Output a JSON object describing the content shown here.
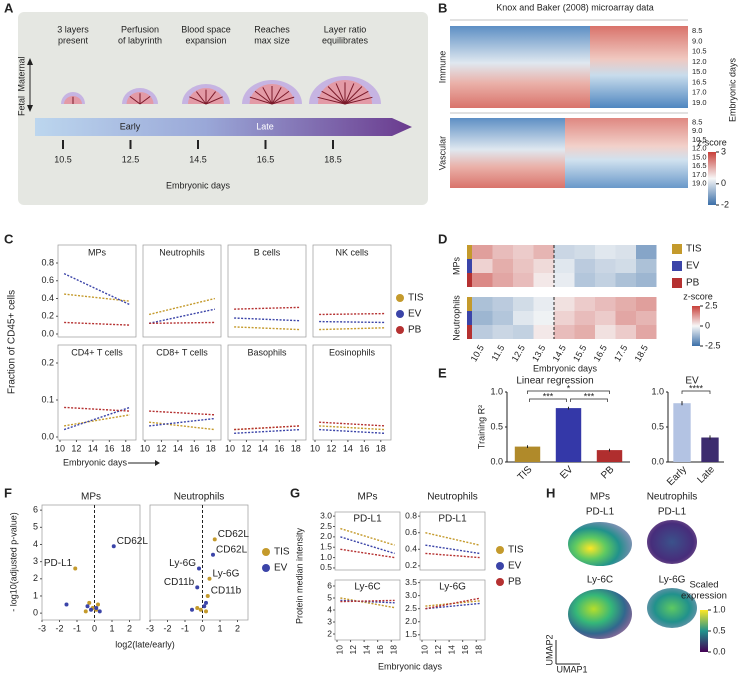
{
  "panel_letters": [
    "A",
    "B",
    "C",
    "D",
    "E",
    "F",
    "G",
    "H"
  ],
  "groups": [
    {
      "name": "TIS",
      "color": "#c49a2c"
    },
    {
      "name": "EV",
      "color": "#3b44a8"
    },
    {
      "name": "PB",
      "color": "#b53131"
    }
  ],
  "a": {
    "stages": [
      [
        "3 layers",
        "present"
      ],
      [
        "Perfusion",
        "of labyrinth"
      ],
      [
        "Blood space",
        "expansion"
      ],
      [
        "Reaches",
        "max size"
      ],
      [
        "Layer ratio",
        "equilibrates"
      ]
    ],
    "maternal": "Maternal",
    "fetal": "Fetal",
    "early": "Early",
    "late": "Late",
    "days": [
      10.5,
      12.5,
      14.5,
      16.5,
      18.5
    ],
    "xlabel": "Embryonic days"
  },
  "b": {
    "title": "Knox and Baker (2008) microarray data",
    "rows": [
      "Immune",
      "Vascular"
    ],
    "day_labels": [
      "8.5",
      "9.0",
      "10.5",
      "12.0",
      "15.0",
      "16.5",
      "17.0",
      "19.0"
    ],
    "ylabel": "Embryonic days",
    "cbar_title": "z-score",
    "cbar_ticks": [
      3,
      0,
      -2
    ],
    "zlim": [
      -2,
      3
    ]
  },
  "c": {
    "ylabel": "Fraction of CD45+ cells",
    "xlabel": "Embryonic days",
    "xlim": [
      10,
      19
    ],
    "xticks": [
      10,
      12,
      14,
      16,
      18
    ],
    "rows": [
      {
        "ylim": [
          0,
          0.8
        ],
        "yticks": [
          {
            "value": 0,
            "label": "0.0"
          },
          0.2,
          0.4,
          0.6,
          0.8
        ]
      },
      {
        "ylim": [
          0,
          0.2
        ],
        "yticks": [
          {
            "value": 0,
            "label": "0.0"
          },
          0.1,
          0.2
        ]
      }
    ],
    "subplots": [
      {
        "title": "MPs",
        "series": [
          {
            "x": [
              10.5,
              18.5
            ],
            "values": [
              0.45,
              0.37
            ]
          },
          {
            "x": [
              10.5,
              18.5
            ],
            "values": [
              0.68,
              0.33
            ]
          },
          {
            "x": [
              10.5,
              18.5
            ],
            "values": [
              0.13,
              0.1
            ]
          }
        ]
      },
      {
        "title": "Neutrophils",
        "series": [
          {
            "x": [
              10.5,
              18.5
            ],
            "values": [
              0.22,
              0.4
            ]
          },
          {
            "x": [
              10.5,
              18.5
            ],
            "values": [
              0.12,
              0.28
            ]
          },
          {
            "x": [
              10.5,
              18.5
            ],
            "values": [
              0.12,
              0.13
            ]
          }
        ]
      },
      {
        "title": "B cells",
        "series": [
          {
            "x": [
              10.5,
              18.5
            ],
            "values": [
              0.08,
              0.05
            ]
          },
          {
            "x": [
              10.5,
              18.5
            ],
            "values": [
              0.18,
              0.15
            ]
          },
          {
            "x": [
              10.5,
              18.5
            ],
            "values": [
              0.28,
              0.3
            ]
          }
        ]
      },
      {
        "title": "NK cells",
        "series": [
          {
            "x": [
              10.5,
              18.5
            ],
            "values": [
              0.05,
              0.07
            ]
          },
          {
            "x": [
              10.5,
              18.5
            ],
            "values": [
              0.14,
              0.13
            ]
          },
          {
            "x": [
              10.5,
              18.5
            ],
            "values": [
              0.22,
              0.23
            ]
          }
        ]
      },
      {
        "title": "CD4+ T cells",
        "series": [
          {
            "x": [
              10.5,
              18.5
            ],
            "values": [
              0.03,
              0.06
            ]
          },
          {
            "x": [
              10.5,
              18.5
            ],
            "values": [
              0.02,
              0.08
            ]
          },
          {
            "x": [
              10.5,
              18.5
            ],
            "values": [
              0.08,
              0.07
            ]
          }
        ]
      },
      {
        "title": "CD8+ T cells",
        "series": [
          {
            "x": [
              10.5,
              18.5
            ],
            "values": [
              0.04,
              0.02
            ]
          },
          {
            "x": [
              10.5,
              18.5
            ],
            "values": [
              0.03,
              0.05
            ]
          },
          {
            "x": [
              10.5,
              18.5
            ],
            "values": [
              0.07,
              0.06
            ]
          }
        ]
      },
      {
        "title": "Basophils",
        "series": [
          {
            "x": [
              10.5,
              18.5
            ],
            "values": [
              0.02,
              0.03
            ]
          },
          {
            "x": [
              10.5,
              18.5
            ],
            "values": [
              0.01,
              0.02
            ]
          },
          {
            "x": [
              10.5,
              18.5
            ],
            "values": [
              0.02,
              0.03
            ]
          }
        ]
      },
      {
        "title": "Eosinophils",
        "series": [
          {
            "x": [
              10.5,
              18.5
            ],
            "values": [
              0.03,
              0.02
            ]
          },
          {
            "x": [
              10.5,
              18.5
            ],
            "values": [
              0.02,
              0.01
            ]
          },
          {
            "x": [
              10.5,
              18.5
            ],
            "values": [
              0.04,
              0.03
            ]
          }
        ]
      }
    ]
  },
  "d": {
    "type": "heatmap",
    "rows": [
      "MPs",
      "Neutrophils"
    ],
    "columns": [
      10.5,
      11.5,
      12.5,
      13.5,
      14.5,
      15.5,
      16.5,
      17.5,
      18.5
    ],
    "values": [
      [
        [
          1.2,
          0.8,
          0.6,
          0.9,
          -0.6,
          -0.5,
          -0.3,
          -0.4,
          -1.5
        ],
        [
          0.5,
          1.0,
          0.7,
          0.4,
          -0.3,
          -0.8,
          -0.6,
          -0.5,
          -1.0
        ],
        [
          1.5,
          1.1,
          0.8,
          0.2,
          -0.2,
          -0.9,
          -0.7,
          -1.0,
          -1.2
        ]
      ],
      [
        [
          -1.0,
          -0.8,
          -0.5,
          -0.2,
          0.3,
          0.6,
          0.8,
          1.0,
          1.2
        ],
        [
          -1.2,
          -0.9,
          -0.3,
          -0.1,
          0.5,
          0.8,
          0.6,
          1.1,
          0.9
        ],
        [
          -0.8,
          -0.6,
          -0.7,
          0.2,
          0.8,
          1.0,
          0.3,
          0.6,
          1.1
        ]
      ]
    ],
    "zlim": [
      -2.5,
      2.5
    ],
    "cbar_title": "z-score",
    "cbar_ticks": [
      2.5,
      0,
      -2.5
    ],
    "xlabel": "Embryonic days"
  },
  "e": {
    "title": "Linear regression",
    "ylabel": "Training R²",
    "ylim": [
      0,
      1
    ],
    "yticks": [
      {
        "value": 0,
        "label": "0.0"
      },
      0.5,
      {
        "value": 1,
        "label": "1.0"
      }
    ],
    "left": {
      "categories": [
        "TIS",
        "EV",
        "PB"
      ],
      "values": [
        0.22,
        0.77,
        0.17
      ],
      "errors": [
        0.02,
        0.02,
        0.02
      ],
      "colors": [
        "#b08a2a",
        "#3438a8",
        "#b02e2e"
      ],
      "annotations": [
        "*",
        "***",
        "***"
      ]
    },
    "right": {
      "title": "EV",
      "categories": [
        "Early",
        "Late"
      ],
      "values": [
        0.84,
        0.35
      ],
      "errors": [
        0.03,
        0.03
      ],
      "colors": [
        "#b3c3e3",
        "#3c2b6e"
      ],
      "annotations": [
        "****"
      ]
    }
  },
  "f": {
    "ylabel": "- log10(adjusted p-value)",
    "xlabel": "log2(late/early)",
    "xlim": [
      -3,
      2.6
    ],
    "xticks": [
      -3,
      -2,
      -1,
      0,
      1,
      2
    ],
    "ylim": [
      -0.4,
      6.3
    ],
    "yticks": [
      0,
      1,
      2,
      3,
      4,
      5,
      6
    ],
    "subplots": [
      {
        "title": "MPs",
        "series": [
          {
            "x": [
              -1.1,
              -0.3,
              -0.1,
              0.1,
              0.2,
              -0.5
            ],
            "values": [
              2.6,
              0.6,
              0.3,
              0.2,
              0.5,
              0.1
            ],
            "point_labels": [
              "PD-L1",
              null,
              null,
              null,
              null,
              null
            ]
          },
          {
            "x": [
              1.1,
              -0.4,
              -0.2,
              0.1,
              0.3,
              -1.6
            ],
            "values": [
              3.9,
              0.4,
              0.2,
              0.3,
              0.1,
              0.5
            ],
            "point_labels": [
              "CD62L",
              null,
              null,
              null,
              null,
              null
            ]
          }
        ]
      },
      {
        "title": "Neutrophils",
        "series": [
          {
            "x": [
              0.7,
              0.4,
              0.3,
              -0.3,
              -0.1,
              0.2
            ],
            "values": [
              4.3,
              2.0,
              1.0,
              0.3,
              0.2,
              0.1
            ],
            "point_labels": [
              "CD62L",
              "Ly-6G",
              "CD11b",
              null,
              null,
              null
            ]
          },
          {
            "x": [
              0.6,
              -0.2,
              -0.3,
              0.1,
              -0.6,
              0.2
            ],
            "values": [
              3.4,
              2.6,
              1.5,
              0.4,
              0.2,
              0.6
            ],
            "point_labels": [
              "CD62L",
              "Ly-6G",
              "CD11b",
              null,
              null,
              null
            ]
          }
        ]
      }
    ]
  },
  "g": {
    "ylabel": "Protein median intensity",
    "xlabel": "Embryonic days",
    "columns": [
      "MPs",
      "Neutrophils"
    ],
    "xlim": [
      10,
      19
    ],
    "xticks": [
      10,
      12,
      14,
      16,
      18
    ],
    "subplots": [
      {
        "title": "PD-L1",
        "ylim": [
          0.4,
          3.2
        ],
        "yticks": [
          0.5,
          {
            "value": 1,
            "label": "1.0"
          },
          1.5,
          {
            "value": 2,
            "label": "2.0"
          },
          2.5,
          {
            "value": 3,
            "label": "3.0"
          }
        ],
        "series": [
          {
            "x": [
              10.5,
              18.5
            ],
            "values": [
              2.4,
              1.6
            ]
          },
          {
            "x": [
              10.5,
              18.5
            ],
            "values": [
              2.0,
              1.2
            ]
          },
          {
            "x": [
              10.5,
              18.5
            ],
            "values": [
              1.4,
              1.0
            ]
          }
        ]
      },
      {
        "title": "PD-L1",
        "ylim": [
          0.15,
          0.85
        ],
        "yticks": [
          0.2,
          0.4,
          0.6,
          0.8
        ],
        "series": [
          {
            "x": [
              10.5,
              18.5
            ],
            "values": [
              0.6,
              0.45
            ]
          },
          {
            "x": [
              10.5,
              18.5
            ],
            "values": [
              0.45,
              0.35
            ]
          },
          {
            "x": [
              10.5,
              18.5
            ],
            "values": [
              0.35,
              0.3
            ]
          }
        ]
      },
      {
        "title": "Ly-6C",
        "ylim": [
          1.5,
          6.5
        ],
        "yticks": [
          2,
          3,
          4,
          5,
          6
        ],
        "series": [
          {
            "x": [
              10.5,
              18.5
            ],
            "values": [
              5.0,
              4.2
            ]
          },
          {
            "x": [
              10.5,
              18.5
            ],
            "values": [
              4.8,
              4.6
            ]
          },
          {
            "x": [
              10.5,
              18.5
            ],
            "values": [
              4.7,
              4.8
            ]
          }
        ]
      },
      {
        "title": "Ly-6G",
        "ylim": [
          1.3,
          3.6
        ],
        "yticks": [
          1.5,
          {
            "value": 2,
            "label": "2.0"
          },
          2.5,
          {
            "value": 3,
            "label": "3.0"
          },
          3.5
        ],
        "series": [
          {
            "x": [
              10.5,
              18.5
            ],
            "values": [
              2.6,
              2.8
            ]
          },
          {
            "x": [
              10.5,
              18.5
            ],
            "values": [
              2.5,
              2.7
            ]
          },
          {
            "x": [
              10.5,
              18.5
            ],
            "values": [
              2.5,
              2.9
            ]
          }
        ]
      }
    ]
  },
  "h": {
    "columns": [
      "MPs",
      "Neutrophils"
    ],
    "markers": [
      "PD-L1",
      "PD-L1",
      "Ly-6C",
      "Ly-6G"
    ],
    "cbar_title": [
      "Scaled",
      "expression"
    ],
    "cbar_ticks": [
      {
        "value": 1,
        "label": "1.0"
      },
      0.5,
      {
        "value": 0,
        "label": "0.0"
      }
    ],
    "cbar_lim": [
      0,
      1
    ],
    "xlabel": "UMAP1",
    "ylabel": "UMAP2"
  }
}
